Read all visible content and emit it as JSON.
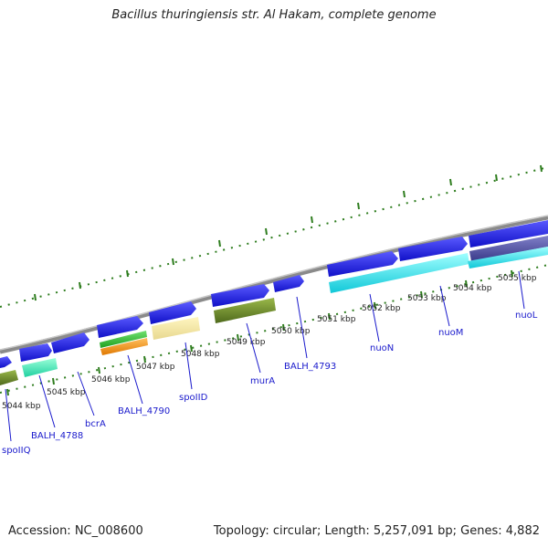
{
  "title": "Bacillus thuringiensis str. Al Hakam, complete genome",
  "accession_text": "Accession: NC_008600",
  "meta_text": "Topology: circular; Length: 5,257,091 bp; Genes: 4,882",
  "colors": {
    "tick": "#2e7d1e",
    "backbone": "#8a8a8a",
    "strand_plus": "#1a1ae6",
    "label": "#1a1acc"
  },
  "scale_labels": [
    "5044 kbp",
    "5045 kbp",
    "5046 kbp",
    "5047 kbp",
    "5048 kbp",
    "5049 kbp",
    "5050 kbp",
    "5051 kbp",
    "5052 kbp",
    "5053 kbp",
    "5054 kbp",
    "5055 kbp"
  ],
  "gene_labels": [
    "spoIIQ",
    "BALH_4788",
    "bcrA",
    "BALH_4790",
    "spoIID",
    "murA",
    "BALH_4793",
    "nuoN",
    "nuoM",
    "nuoL"
  ]
}
